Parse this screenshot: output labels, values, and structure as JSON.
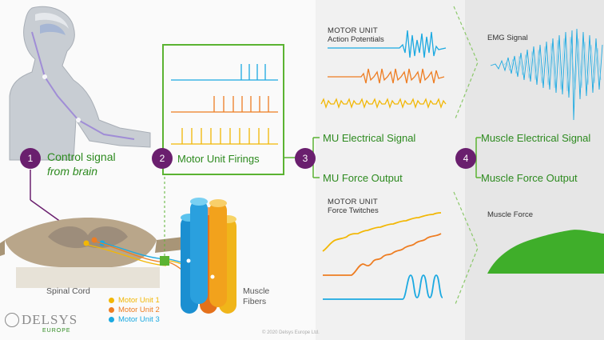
{
  "steps": [
    {
      "number": "1",
      "line1": "Control signal",
      "line2": "from brain"
    },
    {
      "number": "2",
      "label": "Motor Unit Firings"
    },
    {
      "number": "3",
      "top": "MU Electrical Signal",
      "bottom": "MU Force Output"
    },
    {
      "number": "4",
      "top": "Muscle Electrical Signal",
      "bottom": "Muscle Force Output"
    }
  ],
  "labels": {
    "spinal_cord": "Spinal Cord",
    "muscle_fibers_1": "Muscle",
    "muscle_fibers_2": "Fibers",
    "ap_heading_1": "MOTOR UNIT",
    "ap_heading_2": "Action Potentials",
    "ft_heading_1": "MOTOR UNIT",
    "ft_heading_2": "Force Twitches",
    "emg_signal": "EMG Signal",
    "muscle_force": "Muscle Force",
    "copyright": "© 2020 Delsys Europe Ltd."
  },
  "legend": [
    {
      "label": "Motor Unit 1",
      "color": "#f2b705"
    },
    {
      "label": "Motor Unit 2",
      "color": "#ee7d22"
    },
    {
      "label": "Motor Unit 3",
      "color": "#1ba9e1"
    }
  ],
  "logo": {
    "name": "DELSYS",
    "sub": "EUROPE"
  },
  "colors": {
    "accent_green": "#5bb332",
    "step_purple": "#6a1f6e",
    "force_green": "#3fae2a"
  }
}
